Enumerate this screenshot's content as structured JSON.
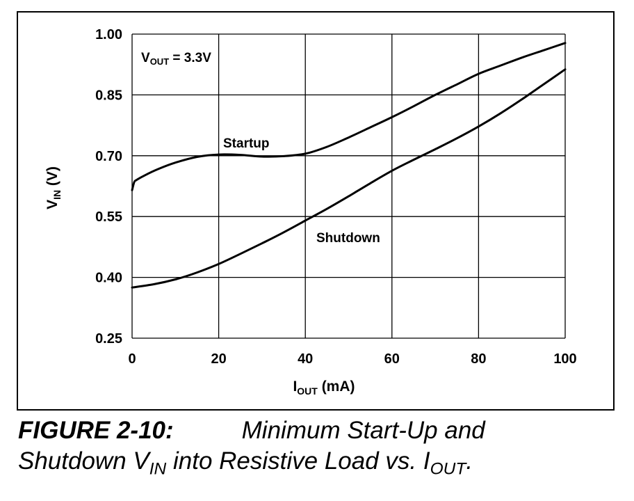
{
  "chart_data": {
    "type": "line",
    "xlim": [
      0,
      100
    ],
    "ylim": [
      0.25,
      1.0
    ],
    "grid": true,
    "x_ticks": [
      0,
      20,
      40,
      60,
      80,
      100
    ],
    "y_ticks": [
      0.25,
      0.4,
      0.55,
      0.7,
      0.85,
      1.0
    ],
    "x_tick_labels": [
      "0",
      "20",
      "40",
      "60",
      "80",
      "100"
    ],
    "y_tick_labels": [
      "0.25",
      "0.40",
      "0.55",
      "0.70",
      "0.85",
      "1.00"
    ],
    "xlabel": {
      "main": "I",
      "sub": "OUT",
      "rest": " (mA)"
    },
    "ylabel": {
      "main": "V",
      "sub": "IN",
      "rest": " (V)"
    },
    "annotation": {
      "main": "V",
      "sub": "OUT",
      "rest": " = 3.3V"
    },
    "series": [
      {
        "name": "Startup",
        "x": [
          0,
          0.5,
          1,
          3,
          6,
          10,
          15,
          20,
          25,
          30,
          35,
          40,
          45,
          50,
          55,
          60,
          65,
          70,
          75,
          80,
          85,
          90,
          95,
          100
        ],
        "values": [
          0.615,
          0.635,
          0.64,
          0.652,
          0.667,
          0.683,
          0.697,
          0.703,
          0.702,
          0.698,
          0.699,
          0.705,
          0.722,
          0.745,
          0.77,
          0.795,
          0.822,
          0.85,
          0.876,
          0.902,
          0.922,
          0.942,
          0.96,
          0.978
        ]
      },
      {
        "name": "Shutdown",
        "x": [
          0,
          5,
          10,
          15,
          20,
          25,
          30,
          35,
          40,
          45,
          50,
          55,
          60,
          65,
          70,
          75,
          80,
          85,
          90,
          95,
          100
        ],
        "values": [
          0.375,
          0.383,
          0.395,
          0.412,
          0.433,
          0.458,
          0.484,
          0.511,
          0.54,
          0.569,
          0.6,
          0.632,
          0.663,
          0.69,
          0.716,
          0.743,
          0.772,
          0.804,
          0.839,
          0.876,
          0.913
        ]
      }
    ],
    "caption": {
      "number": "FIGURE 2-10:",
      "line1": "Minimum Start-Up and",
      "line2_pre": "Shutdown V",
      "line2_sub1": "IN",
      "line2_mid": " into Resistive Load vs. I",
      "line2_sub2": "OUT",
      "line2_end": "."
    }
  }
}
